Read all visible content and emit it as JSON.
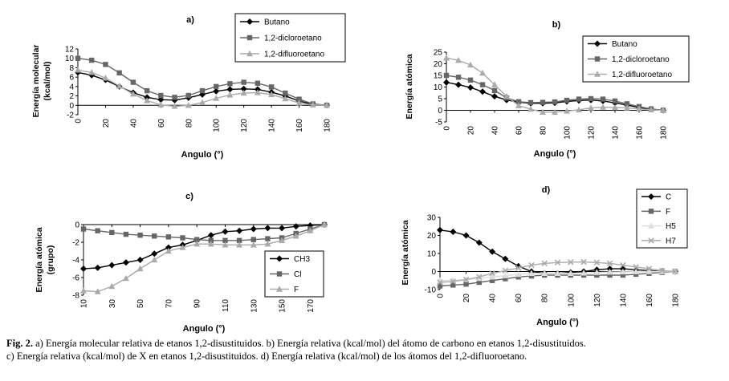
{
  "chart_data": [
    {
      "id": "a",
      "panel_label": "a)",
      "type": "line",
      "ylabel_lines": [
        "Energía molecular",
        "(kcal/mol)"
      ],
      "xlabel": "Angulo (°)",
      "x": [
        0,
        10,
        20,
        30,
        40,
        50,
        60,
        70,
        80,
        90,
        100,
        110,
        120,
        130,
        140,
        150,
        160,
        170,
        180
      ],
      "xticks": [
        0,
        20,
        40,
        60,
        80,
        100,
        120,
        140,
        160,
        180
      ],
      "yticks": [
        -2,
        0,
        2,
        4,
        6,
        8,
        10,
        12
      ],
      "ylim": [
        -2,
        12
      ],
      "series": [
        {
          "name": "Butano",
          "color": "#000000",
          "marker": "diamond",
          "values": [
            7,
            6.4,
            5.4,
            4,
            2.7,
            1.7,
            1.2,
            1.1,
            1.6,
            2.3,
            3,
            3.4,
            3.5,
            3.4,
            2.8,
            2,
            0.9,
            0.2,
            0
          ]
        },
        {
          "name": "1,2-dicloroetano",
          "color": "#666666",
          "marker": "square",
          "values": [
            10,
            9.6,
            8.7,
            6.9,
            4.9,
            3.1,
            2.1,
            1.7,
            2.1,
            3.1,
            4,
            4.6,
            4.9,
            4.7,
            3.9,
            2.6,
            1.3,
            0.3,
            0
          ]
        },
        {
          "name": "1,2-difluoroetano",
          "color": "#aaaaaa",
          "marker": "triangle",
          "values": [
            7.5,
            7,
            5.8,
            4.1,
            2.4,
            1,
            0.1,
            -0.2,
            0,
            0.6,
            1.5,
            2.2,
            2.6,
            2.7,
            2.3,
            1.4,
            0.5,
            0.1,
            0
          ]
        }
      ]
    },
    {
      "id": "b",
      "panel_label": "b)",
      "type": "line",
      "ylabel_lines": [
        "Energía atómica"
      ],
      "xlabel": "Angulo (°)",
      "x": [
        0,
        10,
        20,
        30,
        40,
        50,
        60,
        70,
        80,
        90,
        100,
        110,
        120,
        130,
        140,
        150,
        160,
        170,
        180
      ],
      "xticks": [
        0,
        20,
        40,
        60,
        80,
        100,
        120,
        140,
        160,
        180
      ],
      "yticks": [
        -5,
        0,
        5,
        10,
        15,
        20,
        25
      ],
      "ylim": [
        -5,
        25
      ],
      "series": [
        {
          "name": "Butano",
          "color": "#000000",
          "marker": "diamond",
          "values": [
            12,
            11,
            9.8,
            8,
            6,
            4.4,
            3.5,
            3,
            3,
            3.2,
            3.8,
            4.2,
            4.4,
            4,
            3.2,
            2.2,
            1.2,
            0.5,
            0
          ]
        },
        {
          "name": "1,2-dicloroetano",
          "color": "#666666",
          "marker": "square",
          "values": [
            15,
            14.2,
            13,
            11,
            8.5,
            5.3,
            3.7,
            3.3,
            3.4,
            3.6,
            4.3,
            4.8,
            5,
            4.8,
            4,
            2.8,
            1.6,
            0.6,
            0
          ]
        },
        {
          "name": "1,2-difluoroetano",
          "color": "#aaaaaa",
          "marker": "triangle",
          "values": [
            22.5,
            21.5,
            19.5,
            16,
            11,
            6,
            2,
            0.5,
            -0.8,
            -0.8,
            -0.3,
            0.2,
            1,
            1.3,
            1.2,
            1,
            0.6,
            0.2,
            0
          ]
        }
      ]
    },
    {
      "id": "c",
      "panel_label": "c)",
      "type": "line",
      "ylabel_lines": [
        "Energía atómica",
        "(grupo)"
      ],
      "xlabel": "Angulo (°)",
      "x": [
        10,
        20,
        30,
        40,
        50,
        60,
        70,
        80,
        90,
        100,
        110,
        120,
        130,
        140,
        150,
        160,
        170,
        180
      ],
      "xticks": [
        10,
        30,
        50,
        70,
        90,
        110,
        130,
        150,
        170
      ],
      "yticks": [
        -8,
        -6,
        -4,
        -2,
        0
      ],
      "ylim": [
        -8,
        0
      ],
      "series": [
        {
          "name": "CH3",
          "color": "#000000",
          "marker": "diamond",
          "values": [
            -5,
            -4.9,
            -4.6,
            -4.3,
            -4,
            -3.3,
            -2.6,
            -2.3,
            -1.8,
            -1.2,
            -0.8,
            -0.7,
            -0.5,
            -0.4,
            -0.4,
            -0.2,
            -0.1,
            0
          ]
        },
        {
          "name": "Cl",
          "color": "#666666",
          "marker": "square",
          "values": [
            -0.5,
            -0.7,
            -0.9,
            -1.1,
            -1.2,
            -1.3,
            -1.4,
            -1.5,
            -1.7,
            -1.8,
            -1.8,
            -1.8,
            -1.7,
            -1.6,
            -1.5,
            -1,
            -0.5,
            0
          ]
        },
        {
          "name": "F",
          "color": "#aaaaaa",
          "marker": "triangle",
          "values": [
            -7.5,
            -7.6,
            -7,
            -6.1,
            -5,
            -4,
            -3,
            -2.6,
            -2.2,
            -2.2,
            -2.3,
            -2.3,
            -2.3,
            -2.2,
            -1.8,
            -1.3,
            -0.7,
            0
          ]
        }
      ]
    },
    {
      "id": "d",
      "panel_label": "d)",
      "type": "line",
      "ylabel_lines": [
        "Energía atómica"
      ],
      "xlabel": "Angulo (°)",
      "x": [
        0,
        10,
        20,
        30,
        40,
        50,
        60,
        70,
        80,
        90,
        100,
        110,
        120,
        130,
        140,
        150,
        160,
        170,
        180
      ],
      "xticks": [
        0,
        20,
        40,
        60,
        80,
        100,
        120,
        140,
        160,
        180
      ],
      "yticks": [
        -10,
        0,
        10,
        20,
        30
      ],
      "ylim": [
        -10,
        30
      ],
      "series": [
        {
          "name": "C",
          "color": "#000000",
          "marker": "diamond",
          "values": [
            23,
            22,
            20,
            16,
            11,
            7,
            3,
            0,
            -1,
            -1,
            -0.5,
            0,
            1,
            1.5,
            1.5,
            1,
            0.5,
            0.2,
            0
          ]
        },
        {
          "name": "F",
          "color": "#666666",
          "marker": "square",
          "values": [
            -8,
            -7.5,
            -7,
            -6,
            -5,
            -4,
            -3,
            -2.5,
            -2,
            -2,
            -2,
            -2,
            -2,
            -2,
            -2,
            -1.5,
            -1,
            -0.5,
            0
          ]
        },
        {
          "name": "H5",
          "color": "#dddddd",
          "marker": "triangle",
          "values": [
            -5,
            -4.8,
            -4.5,
            -3.8,
            -3,
            -2.3,
            -1.6,
            -1,
            -1,
            -1,
            -1,
            -0.8,
            -0.5,
            -0.3,
            -0.2,
            -0.1,
            0,
            0,
            0
          ]
        },
        {
          "name": "H7",
          "color": "#aaaaaa",
          "marker": "x",
          "values": [
            -6,
            -5.5,
            -4.5,
            -3,
            -1,
            0.5,
            2,
            3.5,
            4.5,
            5,
            5.2,
            5.3,
            5,
            4.5,
            3.5,
            2.5,
            1.5,
            0.5,
            0
          ]
        }
      ]
    }
  ],
  "caption": {
    "fig_label": "Fig. 2.",
    "line1": " a) Energía molecular relativa de etanos 1,2-disustituidos. b) Energía relativa (kcal/mol) del átomo de carbono en etanos 1,2-disustituidos.",
    "line2": "c) Energía relativa (kcal/mol) de X en etanos 1,2-disustituidos. d) Energía relativa (kcal/mol) de los átomos del 1,2-difluoroetano."
  }
}
